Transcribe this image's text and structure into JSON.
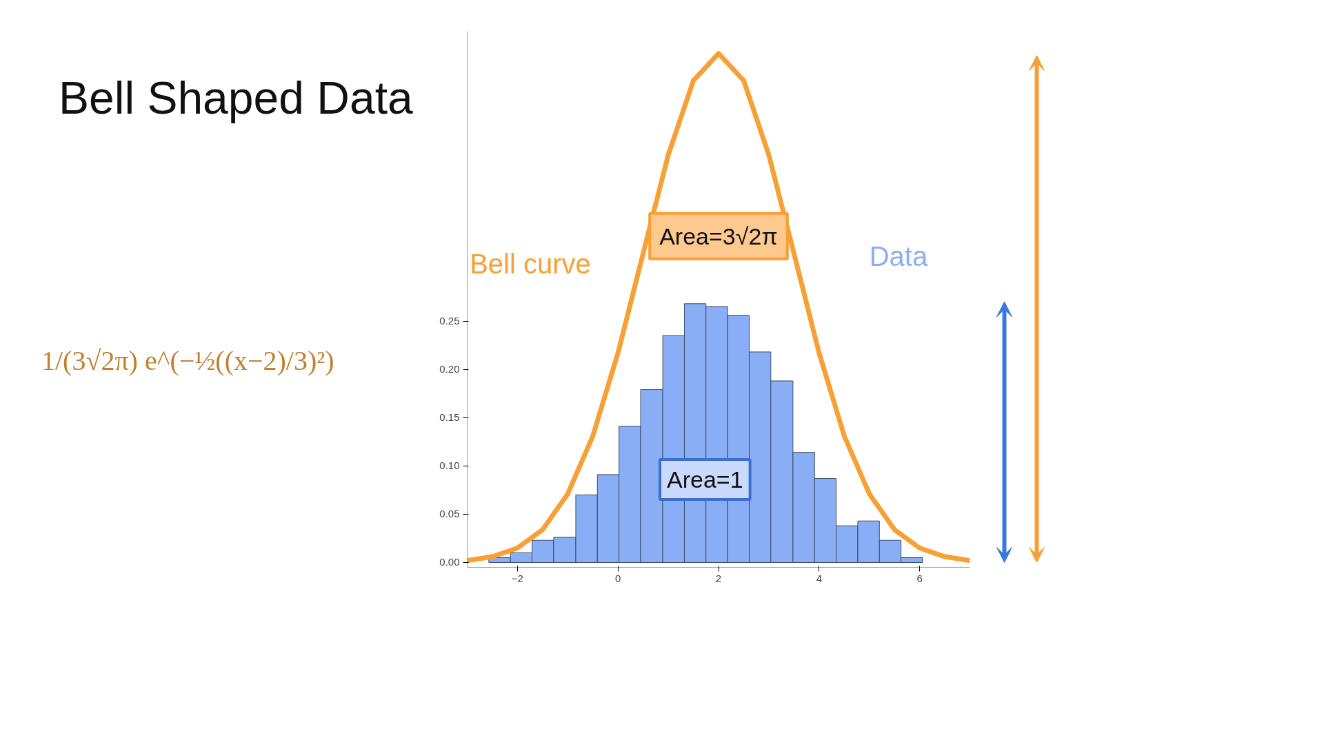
{
  "chart_data": {
    "type": "histogram",
    "title": "Bell Shaped Data",
    "xlim": [
      -3,
      7
    ],
    "ylim": [
      -0.005,
      0.55
    ],
    "xticks": [
      {
        "value": -2,
        "label": "−2"
      },
      0,
      2,
      4,
      6
    ],
    "yticks": [
      {
        "value": 0,
        "label": "0.00"
      },
      {
        "value": 0.05,
        "label": "0.05"
      },
      {
        "value": 0.1,
        "label": "0.10"
      },
      {
        "value": 0.15,
        "label": "0.15"
      },
      {
        "value": 0.2,
        "label": "0.20"
      },
      {
        "value": 0.25,
        "label": "0.25"
      }
    ],
    "grid": false,
    "series": [
      {
        "name": "Data",
        "color": "#8aaef5",
        "bins": [
          -2.57,
          -2.14,
          -1.71,
          -1.28,
          -0.84,
          -0.41,
          0.02,
          0.45,
          0.89,
          1.32,
          1.75,
          2.18,
          2.61,
          3.04,
          3.48,
          3.91,
          4.34,
          4.77,
          5.2,
          5.63,
          6.06
        ],
        "values": [
          0.005,
          0.01,
          0.023,
          0.026,
          0.07,
          0.091,
          0.141,
          0.179,
          0.235,
          0.268,
          0.265,
          0.256,
          0.218,
          0.188,
          0.114,
          0.087,
          0.038,
          0.043,
          0.023,
          0.005
        ]
      },
      {
        "type": "line",
        "name": "Bell curve",
        "color": "#f7a035",
        "x": [
          -3,
          -2.5,
          -2,
          -1.5,
          -1,
          -0.5,
          0,
          0.5,
          1,
          1.5,
          2,
          2.5,
          3,
          3.5,
          4,
          4.5,
          5,
          5.5,
          6,
          6.5,
          7
        ],
        "values": [
          0.002,
          0.006,
          0.015,
          0.034,
          0.071,
          0.131,
          0.217,
          0.32,
          0.422,
          0.499,
          0.527,
          0.499,
          0.422,
          0.32,
          0.217,
          0.131,
          0.071,
          0.034,
          0.015,
          0.006,
          0.002
        ]
      }
    ],
    "annotations": [
      "Area=3√2π",
      "Area=1",
      "1/(3√2π) e^(−½((x−2)/3)²)"
    ]
  }
}
